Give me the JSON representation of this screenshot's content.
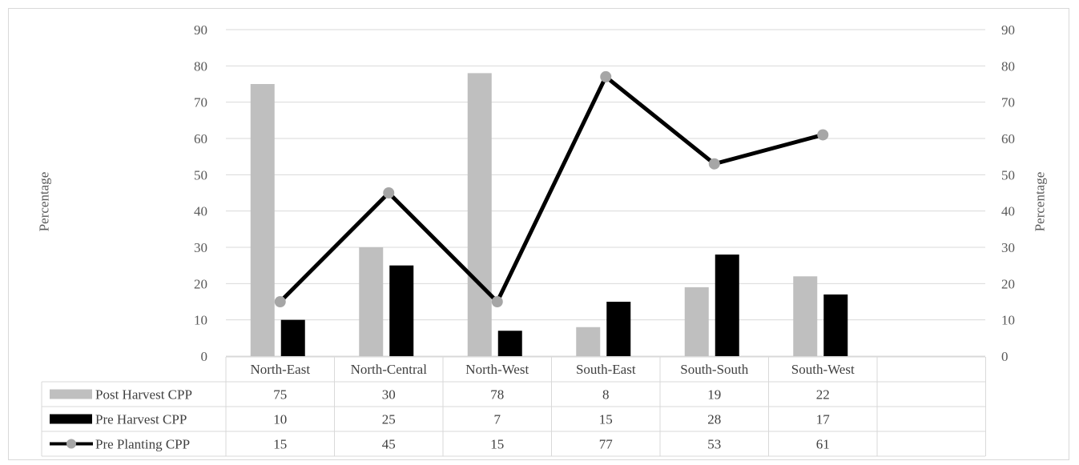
{
  "chart_data": {
    "type": "bar",
    "categories": [
      "North-East",
      "North-Central",
      "North-West",
      "South-East",
      "South-South",
      "South-West"
    ],
    "series": [
      {
        "name": "Post Harvest CPP",
        "kind": "bar",
        "color": "#bfbfbf",
        "values": [
          75,
          30,
          78,
          8,
          19,
          22
        ]
      },
      {
        "name": "Pre Harvest CPP",
        "kind": "bar",
        "color": "#000000",
        "values": [
          10,
          25,
          7,
          15,
          28,
          17
        ]
      },
      {
        "name": "Pre Planting CPP",
        "kind": "line",
        "color": "#000000",
        "marker_color": "#a6a6a6",
        "values": [
          15,
          45,
          15,
          77,
          53,
          61
        ]
      }
    ],
    "ylabel": "Percentage",
    "y2label": "Percentage",
    "ylim": [
      0,
      90
    ],
    "yticks": [
      "0",
      "10",
      "20",
      "30",
      "40",
      "50",
      "60",
      "70",
      "80",
      "90"
    ],
    "grid": true,
    "legend": "data-table-below"
  }
}
